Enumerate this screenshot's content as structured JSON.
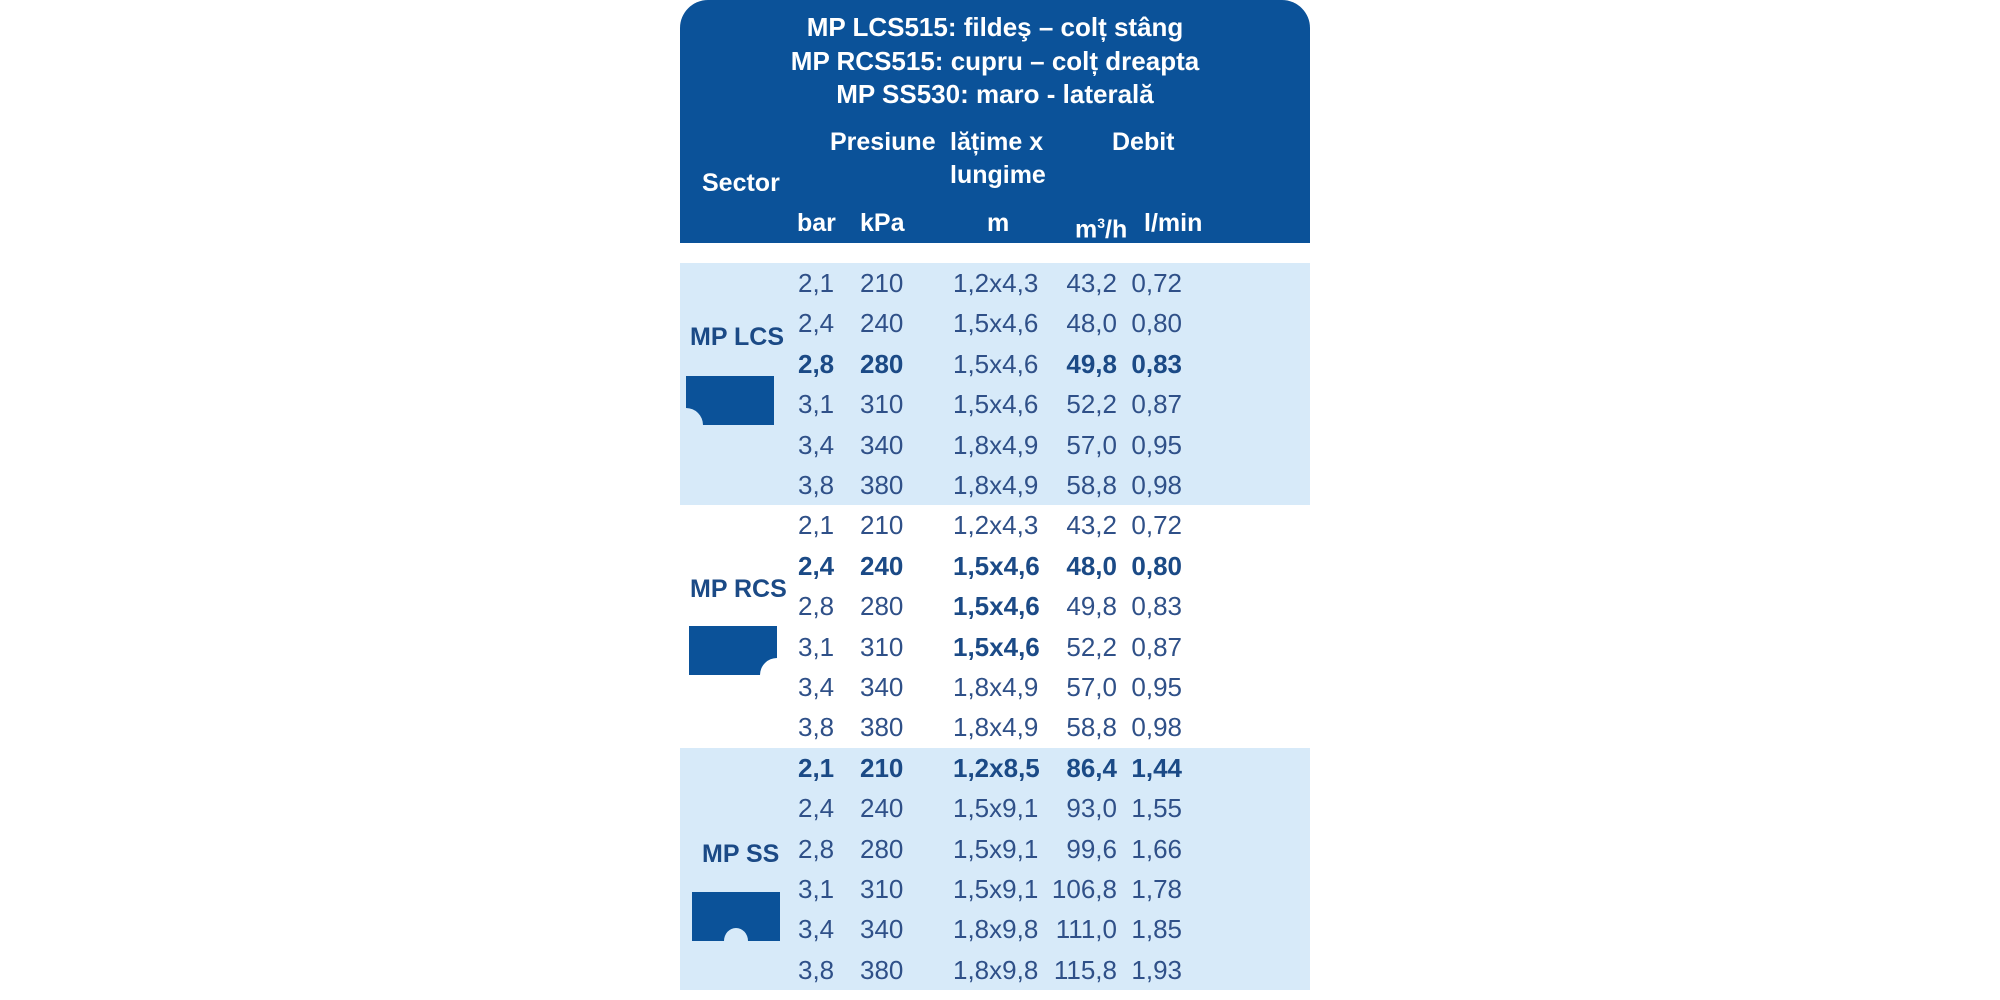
{
  "header": {
    "titles": [
      "MP LCS515: fildeş – colț stâng",
      "MP RCS515: cupru – colț dreapta",
      "MP SS530: maro - laterală"
    ],
    "sector": "Sector",
    "presiune": "Presiune",
    "latime_line1": "lățime x",
    "latime_line2": "lungime",
    "debit": "Debit",
    "units": {
      "bar": "bar",
      "kpa": "kPa",
      "m": "m",
      "m3h_base": "m",
      "m3h_sup": "3",
      "m3h_rest": "/h",
      "lmin": "l/min"
    }
  },
  "colors": {
    "header_bg": "#0b5299",
    "band_light": "#d7eaf9",
    "text": "#2f5088",
    "icon": "#0b5299"
  },
  "groups": [
    {
      "sector": "MP LCS",
      "icon": "left-corner-sector-icon",
      "rows": [
        {
          "cells": [
            "2,1",
            "210",
            "1,2x4,3",
            "43,2",
            "0,72"
          ],
          "bold": []
        },
        {
          "cells": [
            "2,4",
            "240",
            "1,5x4,6",
            "48,0",
            "0,80"
          ],
          "bold": []
        },
        {
          "cells": [
            "2,8",
            "280",
            "1,5x4,6",
            "49,8",
            "0,83"
          ],
          "bold": [
            0,
            1,
            3,
            4
          ]
        },
        {
          "cells": [
            "3,1",
            "310",
            "1,5x4,6",
            "52,2",
            "0,87"
          ],
          "bold": []
        },
        {
          "cells": [
            "3,4",
            "340",
            "1,8x4,9",
            "57,0",
            "0,95"
          ],
          "bold": []
        },
        {
          "cells": [
            "3,8",
            "380",
            "1,8x4,9",
            "58,8",
            "0,98"
          ],
          "bold": []
        }
      ]
    },
    {
      "sector": "MP RCS",
      "icon": "right-corner-sector-icon",
      "rows": [
        {
          "cells": [
            "2,1",
            "210",
            "1,2x4,3",
            "43,2",
            "0,72"
          ],
          "bold": []
        },
        {
          "cells": [
            "2,4",
            "240",
            "1,5x4,6",
            "48,0",
            "0,80"
          ],
          "bold": [
            0,
            1,
            2,
            3,
            4
          ]
        },
        {
          "cells": [
            "2,8",
            "280",
            "1,5x4,6",
            "49,8",
            "0,83"
          ],
          "bold": [
            2
          ]
        },
        {
          "cells": [
            "3,1",
            "310",
            "1,5x4,6",
            "52,2",
            "0,87"
          ],
          "bold": [
            2
          ]
        },
        {
          "cells": [
            "3,4",
            "340",
            "1,8x4,9",
            "57,0",
            "0,95"
          ],
          "bold": []
        },
        {
          "cells": [
            "3,8",
            "380",
            "1,8x4,9",
            "58,8",
            "0,98"
          ],
          "bold": []
        }
      ]
    },
    {
      "sector": "MP SS",
      "icon": "side-strip-sector-icon",
      "rows": [
        {
          "cells": [
            "2,1",
            "210",
            "1,2x8,5",
            "86,4",
            "1,44"
          ],
          "bold": [
            0,
            1,
            2,
            3,
            4
          ]
        },
        {
          "cells": [
            "2,4",
            "240",
            "1,5x9,1",
            "93,0",
            "1,55"
          ],
          "bold": []
        },
        {
          "cells": [
            "2,8",
            "280",
            "1,5x9,1",
            "99,6",
            "1,66"
          ],
          "bold": []
        },
        {
          "cells": [
            "3,1",
            "310",
            "1,5x9,1",
            "106,8",
            "1,78"
          ],
          "bold": []
        },
        {
          "cells": [
            "3,4",
            "340",
            "1,8x9,8",
            "111,0",
            "1,85"
          ],
          "bold": []
        },
        {
          "cells": [
            "3,8",
            "380",
            "1,8x9,8",
            "115,8",
            "1,93"
          ],
          "bold": []
        }
      ]
    }
  ]
}
